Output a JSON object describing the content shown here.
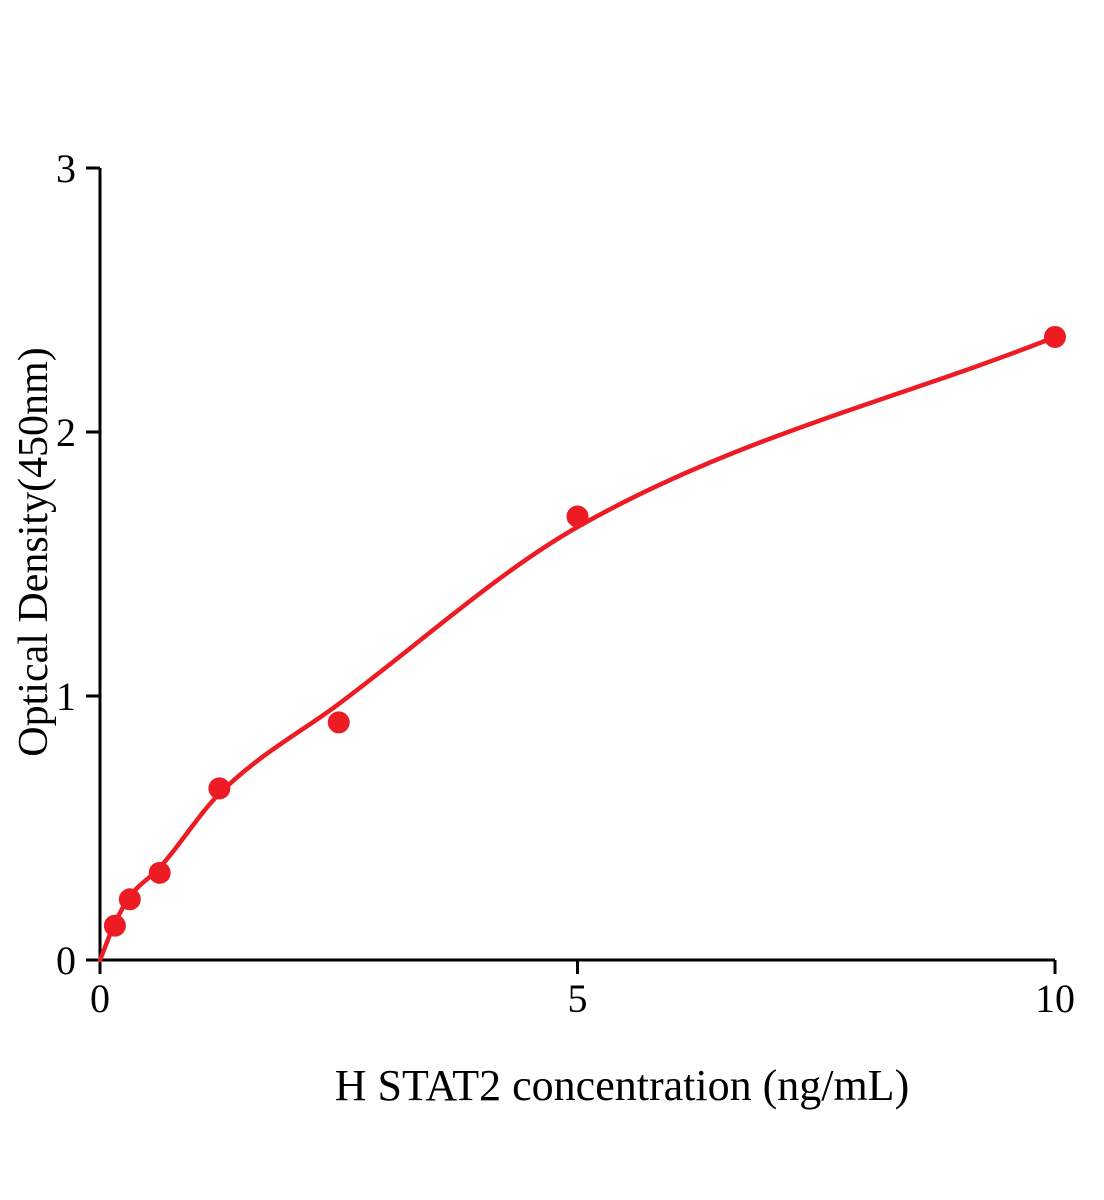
{
  "figure": {
    "xlabel": "H STAT2 concentration (ng/mL)",
    "ylabel": "Optical Density(450nm)"
  },
  "chart_data": {
    "type": "scatter",
    "title": "",
    "xlabel": "H STAT2 concentration (ng/mL)",
    "ylabel": "Optical Density(450nm)",
    "xlim": [
      0,
      10
    ],
    "ylim": [
      0,
      3
    ],
    "x_ticks": [
      0,
      5,
      10
    ],
    "y_ticks": [
      0,
      1,
      2,
      3
    ],
    "grid": false,
    "legend": "none",
    "colors": {
      "points": "#ed1c24",
      "curve": "#ed1c24",
      "axis": "#000000"
    },
    "series": [
      {
        "marker": "circle",
        "color": "#ed1c24",
        "points": [
          {
            "x": 0.156,
            "y": 0.13
          },
          {
            "x": 0.3125,
            "y": 0.23
          },
          {
            "x": 0.625,
            "y": 0.33
          },
          {
            "x": 1.25,
            "y": 0.65
          },
          {
            "x": 2.5,
            "y": 0.9
          },
          {
            "x": 5,
            "y": 1.68
          },
          {
            "x": 10,
            "y": 2.36
          }
        ]
      }
    ],
    "fit_curve": {
      "color": "#ed1c24",
      "through": [
        {
          "x": 0,
          "y": 0
        },
        {
          "x": 0.156,
          "y": 0.14
        },
        {
          "x": 0.3125,
          "y": 0.24
        },
        {
          "x": 0.625,
          "y": 0.35
        },
        {
          "x": 1.25,
          "y": 0.63
        },
        {
          "x": 2.5,
          "y": 0.97
        },
        {
          "x": 5,
          "y": 1.64
        },
        {
          "x": 10,
          "y": 2.36
        }
      ]
    }
  }
}
